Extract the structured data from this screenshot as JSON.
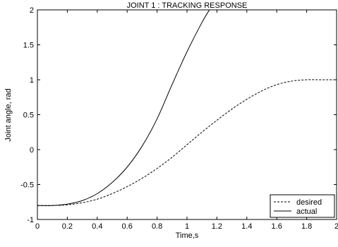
{
  "chart_data": {
    "type": "line",
    "title": "JOINT 1 : TRACKING RESPONSE",
    "xlabel": "Time,s",
    "ylabel": "Joint angle, rad",
    "xlim": [
      0,
      2
    ],
    "ylim": [
      -1,
      2
    ],
    "xticks": [
      "0",
      "0.2",
      "0.4",
      "0.6",
      "0.8",
      "1",
      "1.2",
      "1.4",
      "1.6",
      "1.8",
      "2"
    ],
    "yticks": [
      "-1",
      "-0.5",
      "0",
      "0.5",
      "1",
      "1.5",
      "2"
    ],
    "grid": false,
    "legend_position": "bottom-right",
    "series": [
      {
        "name": "desired",
        "style": "dashed",
        "color": "#000000",
        "x": [
          0,
          0.1,
          0.2,
          0.3,
          0.4,
          0.5,
          0.6,
          0.7,
          0.8,
          0.9,
          1.0,
          1.1,
          1.2,
          1.3,
          1.4,
          1.5,
          1.6,
          1.7,
          1.8,
          1.9,
          2.0
        ],
        "y": [
          -0.8,
          -0.8,
          -0.79,
          -0.76,
          -0.71,
          -0.63,
          -0.53,
          -0.41,
          -0.27,
          -0.11,
          0.07,
          0.25,
          0.42,
          0.58,
          0.72,
          0.84,
          0.93,
          0.98,
          1.0,
          1.0,
          1.0
        ]
      },
      {
        "name": "actual",
        "style": "solid",
        "color": "#000000",
        "x": [
          0,
          0.1,
          0.2,
          0.3,
          0.4,
          0.5,
          0.6,
          0.7,
          0.8,
          0.9,
          1.0,
          1.1,
          1.15
        ],
        "y": [
          -0.8,
          -0.8,
          -0.78,
          -0.73,
          -0.63,
          -0.47,
          -0.25,
          0.05,
          0.44,
          0.93,
          1.4,
          1.82,
          2.0
        ]
      }
    ]
  }
}
